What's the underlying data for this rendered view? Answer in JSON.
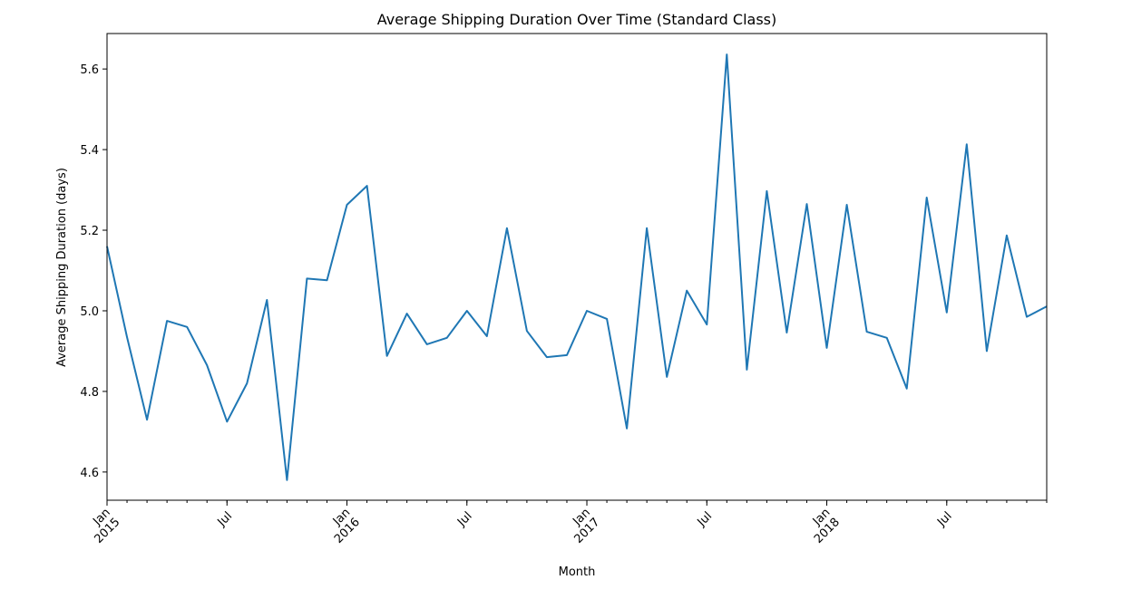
{
  "chart_data": {
    "type": "line",
    "title": "Average Shipping Duration Over Time (Standard Class)",
    "xlabel": "Month",
    "ylabel": "Average Shipping Duration (days)",
    "x": [
      "2015-01",
      "2015-02",
      "2015-03",
      "2015-04",
      "2015-05",
      "2015-06",
      "2015-07",
      "2015-08",
      "2015-09",
      "2015-10",
      "2015-11",
      "2015-12",
      "2016-01",
      "2016-02",
      "2016-03",
      "2016-04",
      "2016-05",
      "2016-06",
      "2016-07",
      "2016-08",
      "2016-09",
      "2016-10",
      "2016-11",
      "2016-12",
      "2017-01",
      "2017-02",
      "2017-03",
      "2017-04",
      "2017-05",
      "2017-06",
      "2017-07",
      "2017-08",
      "2017-09",
      "2017-10",
      "2017-11",
      "2017-12",
      "2018-01",
      "2018-02",
      "2018-03",
      "2018-04",
      "2018-05",
      "2018-06",
      "2018-07",
      "2018-08",
      "2018-09",
      "2018-10",
      "2018-11",
      "2018-12"
    ],
    "values": [
      5.16,
      4.935,
      4.73,
      4.975,
      4.96,
      4.865,
      4.725,
      4.82,
      5.027,
      4.58,
      5.08,
      5.076,
      5.263,
      5.31,
      4.888,
      4.993,
      4.917,
      4.933,
      5.0,
      4.937,
      5.205,
      4.95,
      4.885,
      4.89,
      5.0,
      4.98,
      4.708,
      5.205,
      4.836,
      5.05,
      4.966,
      5.636,
      4.854,
      5.297,
      4.946,
      5.265,
      4.908,
      5.263,
      4.948,
      4.933,
      4.807,
      5.281,
      4.996,
      5.413,
      4.9,
      5.187,
      4.985,
      5.011
    ],
    "ylim": [
      4.53,
      5.688
    ],
    "yticks": [
      "4.6",
      "4.8",
      "5.0",
      "5.2",
      "5.4",
      "5.6"
    ],
    "xticks": [
      {
        "month": 0,
        "lines": [
          "Jan",
          "2015"
        ]
      },
      {
        "month": 6,
        "lines": [
          "Jul"
        ]
      },
      {
        "month": 12,
        "lines": [
          "Jan",
          "2016"
        ]
      },
      {
        "month": 18,
        "lines": [
          "Jul"
        ]
      },
      {
        "month": 24,
        "lines": [
          "Jan",
          "2017"
        ]
      },
      {
        "month": 30,
        "lines": [
          "Jul"
        ]
      },
      {
        "month": 36,
        "lines": [
          "Jan",
          "2018"
        ]
      },
      {
        "month": 42,
        "lines": [
          "Jul"
        ]
      }
    ],
    "grid": false,
    "line_color": "#1f77b4"
  }
}
